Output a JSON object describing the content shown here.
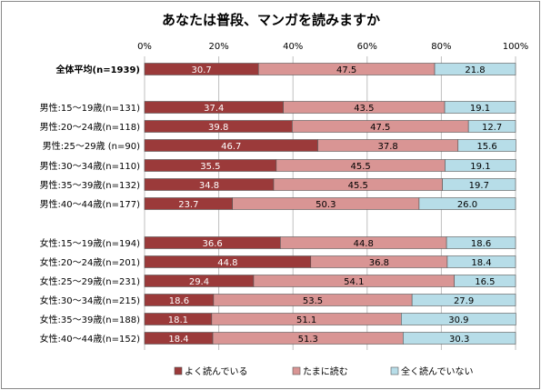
{
  "chart_data": {
    "type": "bar",
    "orientation": "horizontal",
    "stacked": true,
    "title": "あなたは普段、マンガを読みますか",
    "x_ticks": [
      "0%",
      "20%",
      "40%",
      "60%",
      "80%",
      "100%"
    ],
    "xlim": [
      0,
      100
    ],
    "grid": "vertical",
    "legend_position": "bottom",
    "categories": [
      "全体平均(n=1939)",
      "男性:15～19歳(n=131)",
      "男性:20～24歳(n=118)",
      "男性:25～29歳 (n=90)",
      "男性:30～34歳(n=110)",
      "男性:35～39歳(n=132)",
      "男性:40～44歳(n=177)",
      "女性:15～19歳(n=194)",
      "女性:20～24歳(n=201)",
      "女性:25～29歳(n=231)",
      "女性:30～34歳(n=215)",
      "女性:35～39歳(n=188)",
      "女性:40～44歳(n=152)"
    ],
    "series": [
      {
        "name": "よく読んでいる",
        "color": "#9b3a3a",
        "labels": [
          "30.7",
          "37.4",
          "39.8",
          "46.7",
          "35.5",
          "34.8",
          "23.7",
          "36.6",
          "44.8",
          "29.4",
          "18.6",
          "18.1",
          "18.4"
        ],
        "values": [
          30.7,
          37.4,
          39.8,
          46.7,
          35.5,
          34.8,
          23.7,
          36.6,
          44.8,
          29.4,
          18.6,
          18.1,
          18.4
        ]
      },
      {
        "name": "たまに読む",
        "color": "#d99594",
        "labels": [
          "47.5",
          "43.5",
          "47.5",
          "37.8",
          "45.5",
          "45.5",
          "50.3",
          "44.8",
          "36.8",
          "54.1",
          "53.5",
          "51.1",
          "51.3"
        ],
        "values": [
          47.5,
          43.5,
          47.5,
          37.8,
          45.5,
          45.5,
          50.3,
          44.8,
          36.8,
          54.1,
          53.5,
          51.1,
          51.3
        ]
      },
      {
        "name": "全く読んでいない",
        "color": "#b7dde8",
        "labels": [
          "21.8",
          "19.1",
          "12.7",
          "15.6",
          "19.1",
          "19.7",
          "26.0",
          "18.6",
          "18.4",
          "16.5",
          "27.9",
          "30.9",
          "30.3"
        ],
        "values": [
          21.8,
          19.1,
          12.7,
          15.6,
          19.1,
          19.7,
          26.0,
          18.6,
          18.4,
          16.5,
          27.9,
          30.9,
          30.3
        ]
      }
    ]
  }
}
